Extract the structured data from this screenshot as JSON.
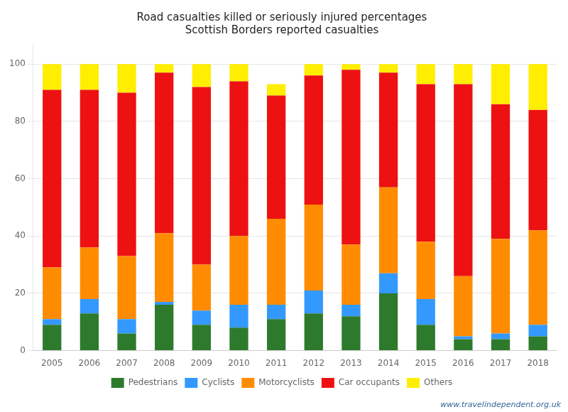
{
  "chart_data": {
    "type": "bar",
    "stacked": true,
    "title": "Road casualties killed or seriously injured percentages",
    "subtitle": "Scottish Borders reported casualties",
    "annotations": [
      "www.travelindependent.org.uk"
    ],
    "categories": [
      "2005",
      "2006",
      "2007",
      "2008",
      "2009",
      "2010",
      "2011",
      "2012",
      "2013",
      "2014",
      "2015",
      "2016",
      "2017",
      "2018"
    ],
    "series": [
      {
        "name": "Pedestrians",
        "color": "#2d7a2d",
        "values": [
          9,
          13,
          6,
          16,
          9,
          8,
          11,
          13,
          12,
          20,
          9,
          4,
          4,
          5
        ]
      },
      {
        "name": "Cyclists",
        "color": "#3399ff",
        "values": [
          2,
          5,
          5,
          1,
          5,
          8,
          5,
          8,
          4,
          7,
          9,
          1,
          2,
          4
        ]
      },
      {
        "name": "Motorcyclists",
        "color": "#ff8c00",
        "values": [
          18,
          18,
          22,
          24,
          16,
          24,
          30,
          30,
          21,
          30,
          20,
          21,
          33,
          33
        ]
      },
      {
        "name": "Car occupants",
        "color": "#ee1111",
        "values": [
          62,
          55,
          57,
          56,
          62,
          54,
          43,
          45,
          61,
          40,
          55,
          67,
          47,
          42
        ]
      },
      {
        "name": "Others",
        "color": "#ffee00",
        "values": [
          9,
          9,
          10,
          3,
          8,
          6,
          4,
          4,
          2,
          3,
          7,
          7,
          14,
          16
        ]
      }
    ],
    "ylim": [
      0,
      107
    ],
    "yticks": [
      0,
      20,
      40,
      60,
      80,
      100
    ],
    "grid": true,
    "legend": "bottom"
  }
}
